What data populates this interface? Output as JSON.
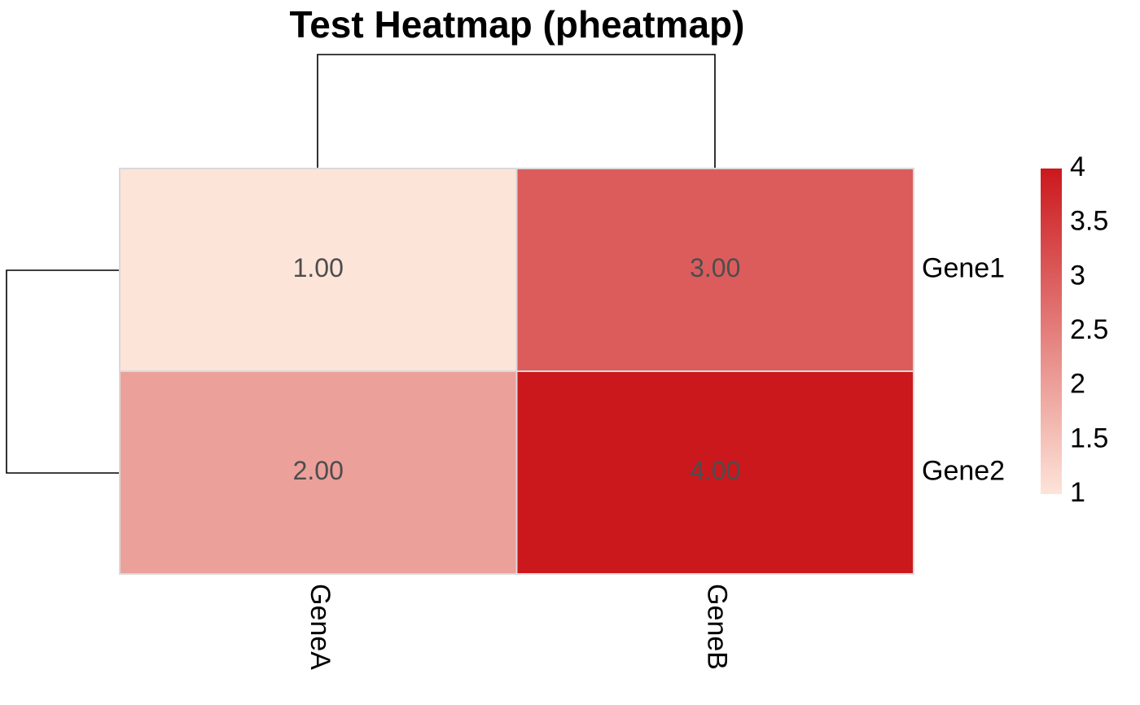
{
  "chart_data": {
    "type": "heatmap",
    "title": "Test Heatmap (pheatmap)",
    "x": [
      "GeneA",
      "GeneB"
    ],
    "y": [
      "Gene1",
      "Gene2"
    ],
    "values": [
      [
        1,
        3
      ],
      [
        2,
        4
      ]
    ],
    "value_labels": [
      [
        "1.00",
        "3.00"
      ],
      [
        "2.00",
        "4.00"
      ]
    ],
    "colors": [
      "#fde4d9",
      "#cb181d"
    ],
    "zlim": [
      1,
      4
    ],
    "zticks": [
      1,
      1.5,
      2,
      2.5,
      3,
      3.5,
      4
    ]
  }
}
